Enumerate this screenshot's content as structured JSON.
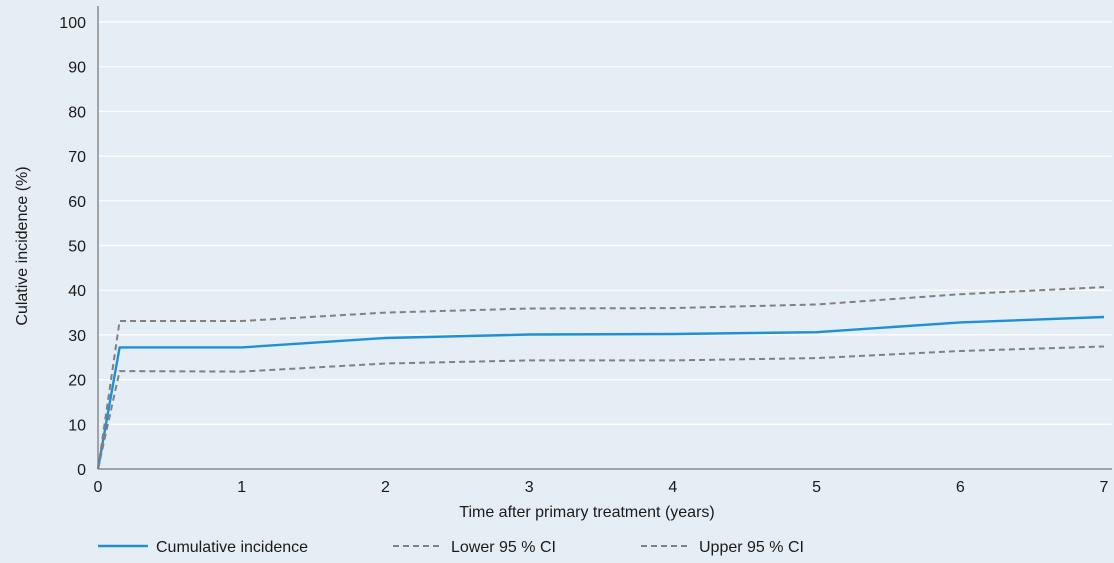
{
  "colors": {
    "background": "#e6eef5",
    "gridline": "#ffffff",
    "axis": "#8a8a8a",
    "cumulative": "#1e90d6",
    "ci": "#808080"
  },
  "chart_data": {
    "type": "line",
    "xlabel": "Time after primary treatment (years)",
    "ylabel": "Culative incidence (%)",
    "xlim": [
      0,
      7
    ],
    "ylim": [
      0,
      100
    ],
    "x_ticks": [
      "0",
      "1",
      "2",
      "3",
      "4",
      "5",
      "6",
      "7"
    ],
    "y_ticks": [
      "0",
      "10",
      "20",
      "30",
      "40",
      "50",
      "60",
      "70",
      "80",
      "90",
      "100"
    ],
    "grid": "horizontal",
    "legend_position": "bottom",
    "series": [
      {
        "name": "Cumulative incidence",
        "style": "solid",
        "points": [
          [
            0,
            0
          ],
          [
            0.15,
            27.2
          ],
          [
            1.0,
            27.2
          ],
          [
            2.0,
            29.3
          ],
          [
            3.0,
            30.1
          ],
          [
            4.0,
            30.2
          ],
          [
            5.0,
            30.6
          ],
          [
            6.0,
            32.8
          ],
          [
            7.0,
            34.0
          ]
        ]
      },
      {
        "name": "Lower 95 % CI",
        "style": "dashed",
        "points": [
          [
            0,
            0
          ],
          [
            0.15,
            21.9
          ],
          [
            1.0,
            21.8
          ],
          [
            2.0,
            23.6
          ],
          [
            3.0,
            24.3
          ],
          [
            4.0,
            24.3
          ],
          [
            5.0,
            24.8
          ],
          [
            6.0,
            26.4
          ],
          [
            7.0,
            27.4
          ]
        ]
      },
      {
        "name": "Upper 95 % CI",
        "style": "dashed",
        "points": [
          [
            0,
            0
          ],
          [
            0.15,
            33.1
          ],
          [
            1.0,
            33.1
          ],
          [
            2.0,
            35.0
          ],
          [
            3.0,
            35.9
          ],
          [
            4.0,
            36.0
          ],
          [
            5.0,
            36.8
          ],
          [
            6.0,
            39.1
          ],
          [
            7.0,
            40.7
          ]
        ]
      }
    ]
  }
}
